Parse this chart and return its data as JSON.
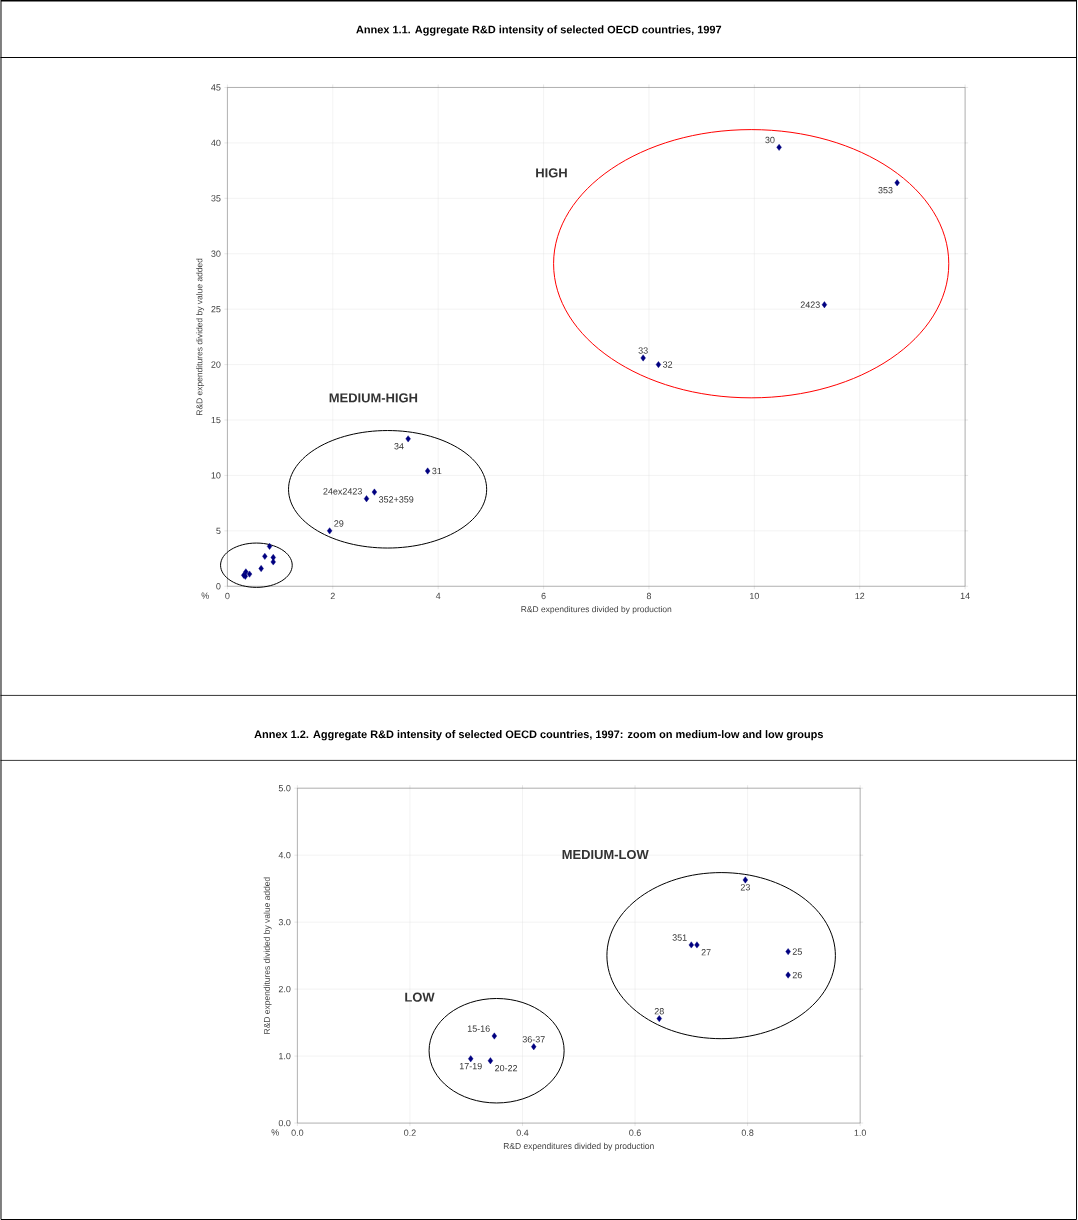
{
  "chart_data": [
    {
      "type": "scatter",
      "title": "Annex 1.1. Aggregate R&D intensity of selected OECD countries, 1997",
      "xlabel": "R&D expenditures divided by production",
      "ylabel": "R&D expenditures divided by value added",
      "x": [
        10.47,
        12.71,
        11.33,
        7.89,
        8.18,
        3.43,
        3.8,
        2.64,
        2.79,
        1.94,
        0.8,
        0.71,
        0.87,
        0.87,
        0.64,
        0.35,
        0.42,
        0.31,
        0.34
      ],
      "values": [
        39.6,
        36.4,
        25.4,
        20.6,
        20.0,
        13.3,
        10.4,
        7.9,
        8.5,
        5.0,
        3.6,
        2.7,
        2.6,
        2.2,
        1.6,
        1.3,
        1.1,
        1.0,
        0.9
      ],
      "color": "#000080",
      "marker": "diamond",
      "grid": true,
      "xlim": [
        0,
        14
      ],
      "ylim": [
        0,
        45
      ],
      "xticks": [
        0,
        2,
        4,
        6,
        8,
        10,
        12,
        14
      ],
      "yticks": [
        0,
        5,
        10,
        15,
        20,
        25,
        30,
        35,
        40,
        45
      ],
      "annotations": [
        "HIGH",
        "MEDIUM-HIGH",
        "%",
        {
          "text": "30",
          "x": 10.47,
          "y": 39.6
        },
        {
          "text": "353",
          "x": 12.71,
          "y": 36.4
        },
        {
          "text": "2423",
          "x": 11.33,
          "y": 25.4
        },
        {
          "text": "33",
          "x": 7.89,
          "y": 20.6
        },
        {
          "text": "32",
          "x": 8.18,
          "y": 20.0
        },
        {
          "text": "34",
          "x": 3.43,
          "y": 13.3
        },
        {
          "text": "31",
          "x": 3.8,
          "y": 10.4
        },
        {
          "text": "24ex2423",
          "x": 2.64,
          "y": 7.9
        },
        {
          "text": "352+359",
          "x": 2.79,
          "y": 8.5
        },
        {
          "text": "29",
          "x": 1.94,
          "y": 5.0
        }
      ]
    },
    {
      "type": "scatter",
      "title": "Annex 1.2. Aggregate R&D intensity of selected OECD countries, 1997: zoom on medium-low and low groups",
      "xlabel": "R&D expenditures divided by production",
      "ylabel": "R&D expenditures divided by value added",
      "x": [
        0.796,
        0.7,
        0.71,
        0.872,
        0.872,
        0.643,
        0.35,
        0.42,
        0.308,
        0.343
      ],
      "values": [
        3.63,
        2.66,
        2.66,
        2.56,
        2.21,
        1.56,
        1.3,
        1.14,
        0.96,
        0.93
      ],
      "color": "#000080",
      "marker": "diamond",
      "grid": true,
      "xlim": [
        0,
        1
      ],
      "ylim": [
        0,
        5
      ],
      "xticks": [
        {
          "value": 0,
          "label": "0.0"
        },
        {
          "value": 0.2,
          "label": "0.2"
        },
        {
          "value": 0.4,
          "label": "0.4"
        },
        {
          "value": 0.6,
          "label": "0.6"
        },
        {
          "value": 0.8,
          "label": "0.8"
        },
        {
          "value": 1,
          "label": "1.0"
        }
      ],
      "yticks": [
        {
          "value": 0,
          "label": "0.0"
        },
        {
          "value": 1,
          "label": "1.0"
        },
        {
          "value": 2,
          "label": "2.0"
        },
        {
          "value": 3,
          "label": "3.0"
        },
        {
          "value": 4,
          "label": "4.0"
        },
        {
          "value": 5,
          "label": "5.0"
        }
      ],
      "annotations": [
        "MEDIUM-LOW",
        "LOW",
        "%",
        {
          "text": "23",
          "x": 0.796,
          "y": 3.63
        },
        {
          "text": "351",
          "x": 0.7,
          "y": 2.66
        },
        {
          "text": "27",
          "x": 0.71,
          "y": 2.66
        },
        {
          "text": "25",
          "x": 0.872,
          "y": 2.56
        },
        {
          "text": "26",
          "x": 0.872,
          "y": 2.21
        },
        {
          "text": "28",
          "x": 0.643,
          "y": 1.56
        },
        {
          "text": "15-16",
          "x": 0.35,
          "y": 1.3
        },
        {
          "text": "36-37",
          "x": 0.42,
          "y": 1.14
        },
        {
          "text": "17-19",
          "x": 0.308,
          "y": 0.96
        },
        {
          "text": "20-22",
          "x": 0.343,
          "y": 0.93
        }
      ]
    }
  ]
}
